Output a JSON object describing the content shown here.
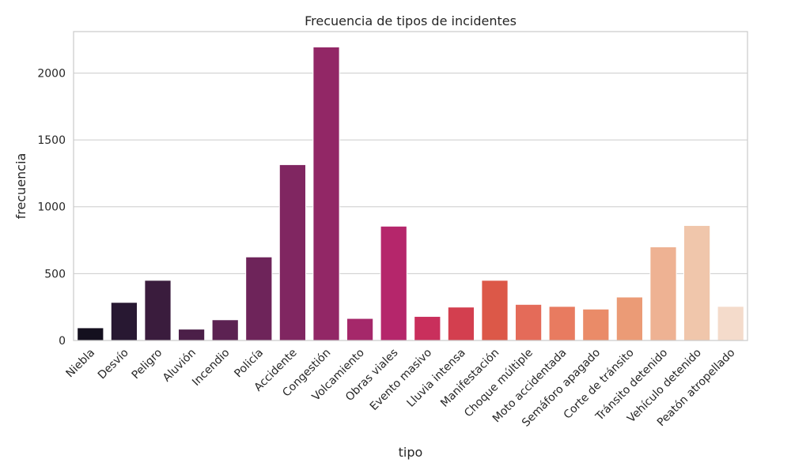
{
  "chart_data": {
    "type": "bar",
    "title": "Frecuencia de tipos de incidentes",
    "xlabel": "tipo",
    "ylabel": "frecuencia",
    "ylim": [
      0,
      2310
    ],
    "yticks": [
      0,
      500,
      1000,
      1500,
      2000
    ],
    "grid": "horizontal",
    "categories": [
      "Niebla",
      "Desvío",
      "Peligro",
      "Aluvión",
      "Incendio",
      "Policía",
      "Accidente",
      "Congestión",
      "Volcamiento",
      "Obras viales",
      "Evento masivo",
      "Lluvia intensa",
      "Manifestación",
      "Choque múltiple",
      "Moto accidentada",
      "Semáforo apagado",
      "Corte de tránsito",
      "Tránsito detenido",
      "Vehículo detenido",
      "Peatón atropellado"
    ],
    "values": [
      95,
      285,
      450,
      85,
      155,
      625,
      1315,
      2195,
      165,
      855,
      180,
      250,
      450,
      270,
      255,
      235,
      325,
      700,
      860,
      255
    ],
    "colors": [
      "#14101f",
      "#281832",
      "#3a1c3d",
      "#4b1f48",
      "#5c2252",
      "#6e245a",
      "#802661",
      "#922766",
      "#a5286a",
      "#b5266b",
      "#c92f5c",
      "#d33f4f",
      "#dc5848",
      "#e46b59",
      "#e87b60",
      "#ea8b68",
      "#eb9b76",
      "#eeb293",
      "#f0c6ab",
      "#f4dbcb"
    ]
  }
}
